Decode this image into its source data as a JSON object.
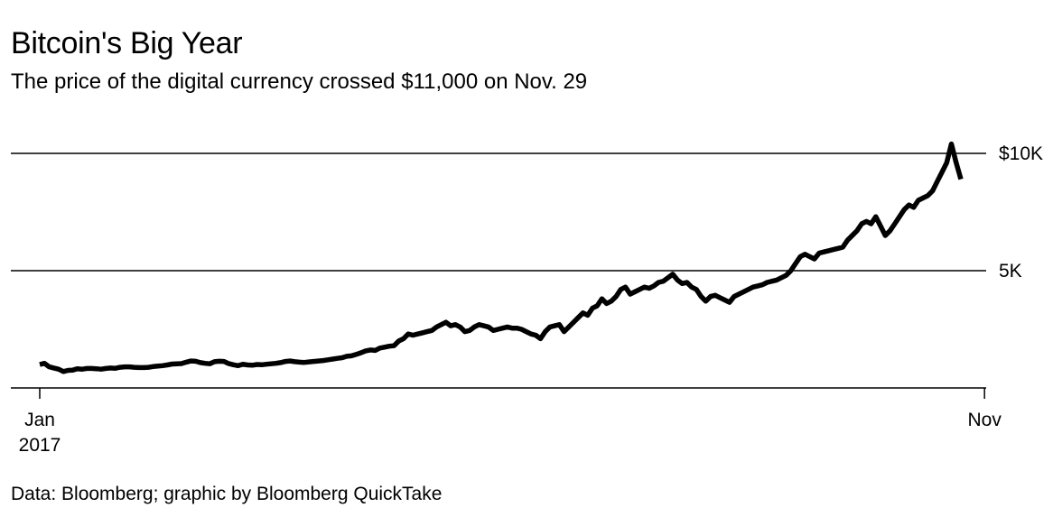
{
  "header": {
    "title": "Bitcoin's Big Year",
    "subtitle": "The price of the digital currency crossed $11,000 on Nov. 29"
  },
  "footer": {
    "source": "Data: Bloomberg; graphic by Bloomberg QuickTake"
  },
  "colors": {
    "line": "#000000",
    "grid": "#000000",
    "background": "#ffffff"
  },
  "chart_data": {
    "type": "line",
    "title": "Bitcoin's Big Year",
    "subtitle": "The price of the digital currency crossed $11,000 on Nov. 29",
    "xlabel": "",
    "ylabel": "",
    "grid": true,
    "legend": "none",
    "ylim": [
      0,
      10000
    ],
    "y_ticks": [
      {
        "value": 5000,
        "label": "5K"
      },
      {
        "value": 10000,
        "label": "$10K"
      }
    ],
    "x_ticks": [
      {
        "index": 0,
        "label": "Jan",
        "sublabel": "2017"
      },
      {
        "index": 200,
        "label": "Nov",
        "sublabel": ""
      }
    ],
    "series": [
      {
        "values": [
          1000,
          1050,
          900,
          850,
          800,
          700,
          750,
          760,
          820,
          800,
          830,
          830,
          820,
          800,
          830,
          850,
          840,
          880,
          900,
          900,
          880,
          870,
          870,
          880,
          910,
          930,
          950,
          980,
          1020,
          1030,
          1040,
          1100,
          1150,
          1140,
          1080,
          1050,
          1030,
          1120,
          1140,
          1130,
          1040,
          990,
          950,
          1010,
          980,
          970,
          1000,
          990,
          1010,
          1030,
          1050,
          1080,
          1130,
          1150,
          1120,
          1100,
          1090,
          1110,
          1130,
          1150,
          1170,
          1200,
          1230,
          1260,
          1290,
          1350,
          1370,
          1430,
          1500,
          1580,
          1620,
          1600,
          1700,
          1740,
          1780,
          1800,
          2000,
          2100,
          2300,
          2250,
          2300,
          2350,
          2400,
          2450,
          2600,
          2700,
          2800,
          2650,
          2700,
          2600,
          2400,
          2450,
          2600,
          2700,
          2650,
          2600,
          2450,
          2500,
          2550,
          2600,
          2550,
          2550,
          2500,
          2400,
          2300,
          2250,
          2100,
          2400,
          2600,
          2650,
          2700,
          2400,
          2600,
          2800,
          3000,
          3200,
          3100,
          3400,
          3500,
          3800,
          3600,
          3700,
          3900,
          4200,
          4300,
          4000,
          4100,
          4200,
          4300,
          4250,
          4350,
          4500,
          4550,
          4700,
          4850,
          4600,
          4450,
          4500,
          4300,
          4200,
          3900,
          3700,
          3900,
          3950,
          3850,
          3750,
          3650,
          3900,
          4000,
          4100,
          4200,
          4300,
          4350,
          4400,
          4500,
          4550,
          4600,
          4700,
          4800,
          5000,
          5300,
          5600,
          5700,
          5600,
          5500,
          5750,
          5800,
          5850,
          5900,
          5950,
          6000,
          6300,
          6500,
          6700,
          7000,
          7100,
          7000,
          7300,
          6900,
          6500,
          6700,
          7000,
          7300,
          7600,
          7800,
          7700,
          8000,
          8100,
          8200,
          8400,
          8800,
          9200,
          9600,
          10400,
          9600,
          8900
        ]
      }
    ]
  }
}
